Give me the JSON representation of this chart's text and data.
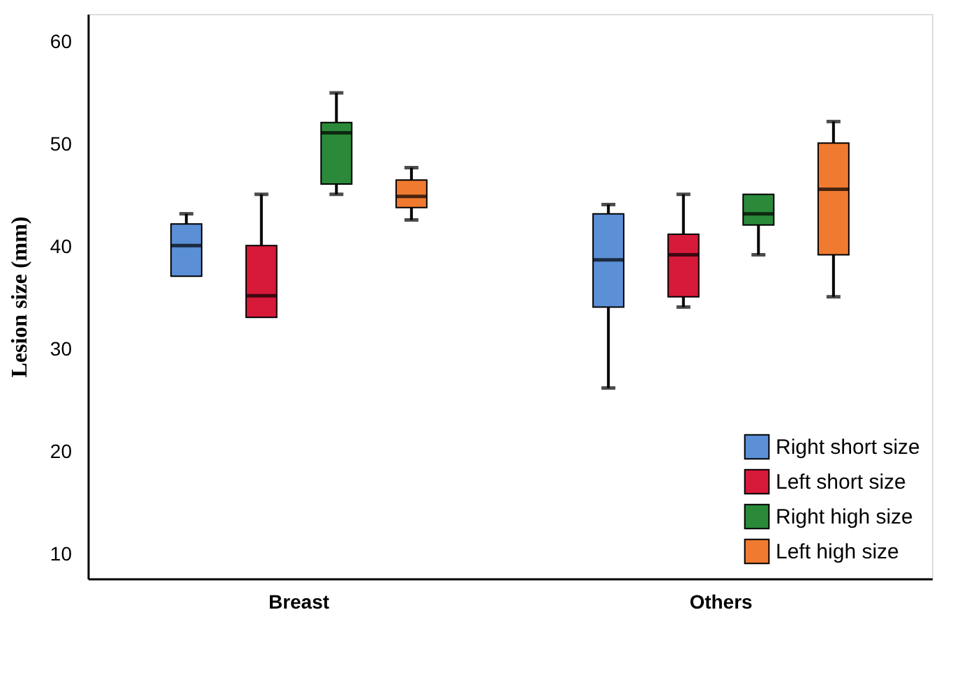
{
  "chart_data": {
    "type": "box",
    "ylabel": "Lesion size (mm)",
    "categories": [
      "Breast",
      "Others"
    ],
    "ylim": [
      7.6,
      62.7
    ],
    "yticks": [
      10,
      20,
      30,
      40,
      50,
      60
    ],
    "grid": false,
    "legend": "bottom right",
    "series": [
      {
        "name": "Right short size",
        "color": "#5b8fd6",
        "boxes": [
          {
            "low": 37.1,
            "q1": 37.1,
            "median": 40.1,
            "q3": 42.2,
            "high": 43.2
          },
          {
            "low": 26.2,
            "q1": 34.1,
            "median": 38.7,
            "q3": 43.2,
            "high": 44.1
          }
        ]
      },
      {
        "name": "Left short size",
        "color": "#d7193a",
        "boxes": [
          {
            "low": 33.1,
            "q1": 33.1,
            "median": 35.2,
            "q3": 40.1,
            "high": 45.1
          },
          {
            "low": 34.1,
            "q1": 35.1,
            "median": 39.2,
            "q3": 41.2,
            "high": 45.1
          }
        ]
      },
      {
        "name": "Right high size",
        "color": "#2a8a3a",
        "boxes": [
          {
            "low": 45.1,
            "q1": 46.1,
            "median": 51.1,
            "q3": 52.1,
            "high": 55.0
          },
          {
            "low": 39.2,
            "q1": 42.1,
            "median": 43.2,
            "q3": 45.1,
            "high": 45.1
          }
        ]
      },
      {
        "name": "Left high size",
        "color": "#f07a30",
        "boxes": [
          {
            "low": 42.6,
            "q1": 43.8,
            "median": 44.9,
            "q3": 46.5,
            "high": 47.7
          },
          {
            "low": 35.1,
            "q1": 39.2,
            "median": 45.6,
            "q3": 50.1,
            "high": 52.2
          }
        ]
      }
    ]
  }
}
